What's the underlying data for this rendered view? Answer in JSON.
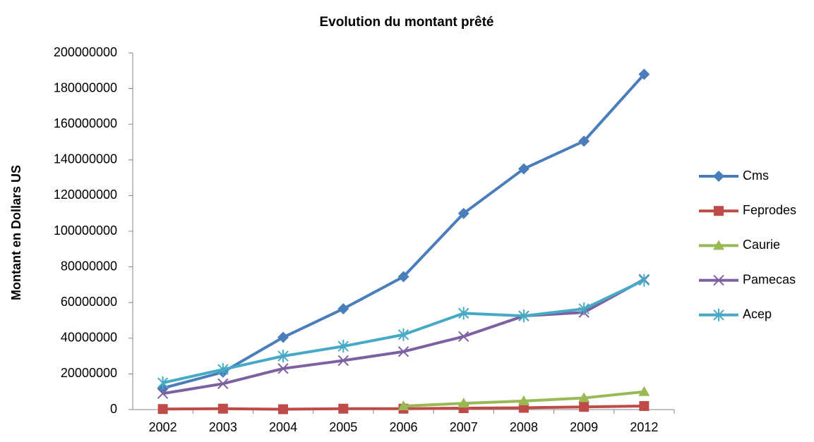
{
  "chart_data": {
    "type": "line",
    "title": "Evolution du montant prêté",
    "ylabel": "Montant en Dollars US",
    "categories": [
      "2002",
      "2003",
      "2004",
      "2005",
      "2006",
      "2007",
      "2008",
      "2009",
      "2012"
    ],
    "series": [
      {
        "name": "Cms",
        "color": "#4a7ebb",
        "marker": "diamond",
        "values": [
          12000000,
          21000000,
          40500000,
          56500000,
          74500000,
          110000000,
          135000000,
          150500000,
          188000000
        ]
      },
      {
        "name": "Feprodes",
        "color": "#be4b48",
        "marker": "square",
        "values": [
          300000,
          500000,
          200000,
          500000,
          500000,
          800000,
          1000000,
          1500000,
          2000000
        ]
      },
      {
        "name": "Caurie",
        "color": "#98b954",
        "marker": "triangle",
        "values": [
          null,
          null,
          null,
          null,
          2000000,
          3500000,
          4800000,
          6500000,
          10000000
        ]
      },
      {
        "name": "Pamecas",
        "color": "#7d60a0",
        "marker": "x",
        "values": [
          9000000,
          14500000,
          23000000,
          27500000,
          32500000,
          41000000,
          52500000,
          54500000,
          73000000
        ]
      },
      {
        "name": "Acep",
        "color": "#46aac5",
        "marker": "asterisk",
        "values": [
          15000000,
          22500000,
          30000000,
          35500000,
          42000000,
          54000000,
          52500000,
          56500000,
          72500000
        ]
      }
    ],
    "ylim": [
      0,
      200000000
    ],
    "yticks": [
      0,
      20000000,
      40000000,
      60000000,
      80000000,
      100000000,
      120000000,
      140000000,
      160000000,
      180000000,
      200000000
    ],
    "legend": "right",
    "grid": false
  }
}
